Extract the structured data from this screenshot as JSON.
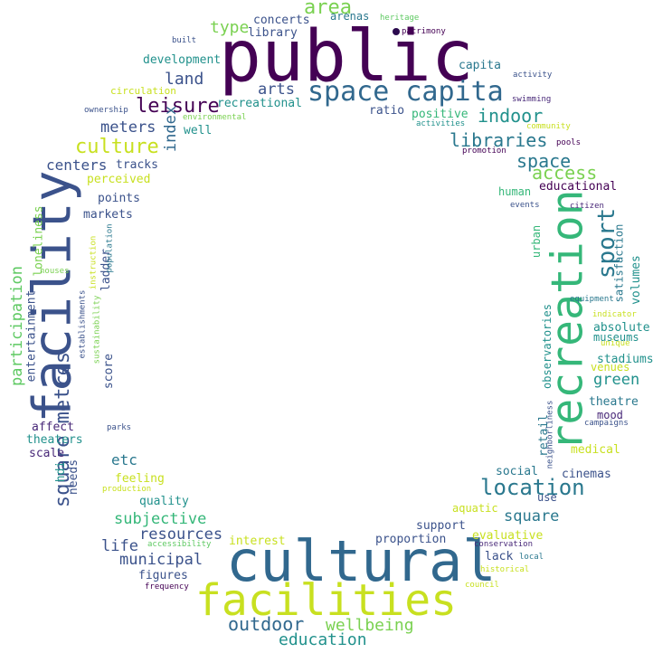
{
  "words": [
    {
      "text": "public",
      "color": "#440154"
    },
    {
      "text": "cultural",
      "color": "#31688e"
    },
    {
      "text": "facilities",
      "color": "#c8e020"
    },
    {
      "text": "facility",
      "color": "#3b528b"
    },
    {
      "text": "recreation",
      "color": "#35b779"
    },
    {
      "text": "space capita",
      "color": "#31688e"
    },
    {
      "text": "sport",
      "color": "#2a788e"
    },
    {
      "text": "location",
      "color": "#2a788e"
    },
    {
      "text": "square metres",
      "color": "#3b528b"
    },
    {
      "text": "area",
      "color": "#7ad151"
    },
    {
      "text": "leisure",
      "color": "#440154"
    },
    {
      "text": "culture",
      "color": "#c8e020"
    },
    {
      "text": "indoor",
      "color": "#21918c"
    },
    {
      "text": "libraries",
      "color": "#2a788e"
    },
    {
      "text": "space",
      "color": "#2a788e"
    },
    {
      "text": "access",
      "color": "#7ad151"
    },
    {
      "text": "outdoor",
      "color": "#31688e"
    },
    {
      "text": "wellbeing",
      "color": "#7ad151"
    },
    {
      "text": "education",
      "color": "#21918c"
    },
    {
      "text": "land",
      "color": "#3b528b"
    },
    {
      "text": "arts",
      "color": "#3b528b"
    },
    {
      "text": "type",
      "color": "#7ad151"
    },
    {
      "text": "meters",
      "color": "#3b528b"
    },
    {
      "text": "index",
      "color": "#31688e"
    },
    {
      "text": "green",
      "color": "#21918c"
    },
    {
      "text": "subjective",
      "color": "#35b779"
    },
    {
      "text": "municipal",
      "color": "#3b528b"
    },
    {
      "text": "resources",
      "color": "#3b528b"
    },
    {
      "text": "life",
      "color": "#3b528b"
    },
    {
      "text": "square",
      "color": "#2a788e"
    },
    {
      "text": "participation",
      "color": "#5ec962"
    },
    {
      "text": "centers",
      "color": "#3b528b"
    },
    {
      "text": "etc",
      "color": "#2a788e"
    },
    {
      "text": "concerts",
      "color": "#3b528b"
    },
    {
      "text": "library",
      "color": "#3b528b"
    },
    {
      "text": "arenas",
      "color": "#2a788e"
    },
    {
      "text": "heritage",
      "color": "#5ec962"
    },
    {
      "text": "patrimony",
      "color": "#440154"
    },
    {
      "text": "built",
      "color": "#3b528b"
    },
    {
      "text": "development",
      "color": "#21918c"
    },
    {
      "text": "capita",
      "color": "#2a788e"
    },
    {
      "text": "activity",
      "color": "#3b528b"
    },
    {
      "text": "circulation",
      "color": "#c8e020"
    },
    {
      "text": "recreational",
      "color": "#21918c"
    },
    {
      "text": "swimming",
      "color": "#482878"
    },
    {
      "text": "ownership",
      "color": "#3b528b"
    },
    {
      "text": "environmental",
      "color": "#7ad151"
    },
    {
      "text": "positive",
      "color": "#35b779"
    },
    {
      "text": "activities",
      "color": "#21918c"
    },
    {
      "text": "community",
      "color": "#c8e020"
    },
    {
      "text": "well",
      "color": "#21918c"
    },
    {
      "text": "ratio",
      "color": "#3b528b"
    },
    {
      "text": "pools",
      "color": "#440154"
    },
    {
      "text": "promotion",
      "color": "#440154"
    },
    {
      "text": "tracks",
      "color": "#3b528b"
    },
    {
      "text": "perceived",
      "color": "#c8e020"
    },
    {
      "text": "educational",
      "color": "#440154"
    },
    {
      "text": "human",
      "color": "#35b779"
    },
    {
      "text": "points",
      "color": "#3b528b"
    },
    {
      "text": "events",
      "color": "#3b528b"
    },
    {
      "text": "citizen",
      "color": "#482878"
    },
    {
      "text": "markets",
      "color": "#3b528b"
    },
    {
      "text": "loneliness",
      "color": "#7ad151"
    },
    {
      "text": "urban",
      "color": "#35b779"
    },
    {
      "text": "satisfaction",
      "color": "#2a788e"
    },
    {
      "text": "ladder",
      "color": "#3b528b"
    },
    {
      "text": "instruction",
      "color": "#c8e020"
    },
    {
      "text": "population",
      "color": "#2a788e"
    },
    {
      "text": "houses",
      "color": "#7ad151"
    },
    {
      "text": "volumes",
      "color": "#21918c"
    },
    {
      "text": "equipment",
      "color": "#2a788e"
    },
    {
      "text": "observatories",
      "color": "#21918c"
    },
    {
      "text": "indicator",
      "color": "#c8e020"
    },
    {
      "text": "absolute",
      "color": "#21918c"
    },
    {
      "text": "entertainment",
      "color": "#3b528b"
    },
    {
      "text": "establishments",
      "color": "#3b528b"
    },
    {
      "text": "sustainability",
      "color": "#7ad151"
    },
    {
      "text": "museums",
      "color": "#21918c"
    },
    {
      "text": "unique",
      "color": "#c8e020"
    },
    {
      "text": "stadiums",
      "color": "#21918c"
    },
    {
      "text": "venues",
      "color": "#c8e020"
    },
    {
      "text": "score",
      "color": "#3b528b"
    },
    {
      "text": "theatre",
      "color": "#2a788e"
    },
    {
      "text": "mood",
      "color": "#482878"
    },
    {
      "text": "campaigns",
      "color": "#3b528b"
    },
    {
      "text": "affect",
      "color": "#482878"
    },
    {
      "text": "parks",
      "color": "#3b528b"
    },
    {
      "text": "retail",
      "color": "#2a788e"
    },
    {
      "text": "neighborliness",
      "color": "#3b528b"
    },
    {
      "text": "theaters",
      "color": "#21918c"
    },
    {
      "text": "medical",
      "color": "#c8e020"
    },
    {
      "text": "hdi",
      "color": "#21918c"
    },
    {
      "text": "scale",
      "color": "#482878"
    },
    {
      "text": "needs",
      "color": "#3b528b"
    },
    {
      "text": "feeling",
      "color": "#c8e020"
    },
    {
      "text": "social",
      "color": "#2a788e"
    },
    {
      "text": "cinemas",
      "color": "#3b528b"
    },
    {
      "text": "production",
      "color": "#c8e020"
    },
    {
      "text": "use",
      "color": "#3b528b"
    },
    {
      "text": "quality",
      "color": "#21918c"
    },
    {
      "text": "aquatic",
      "color": "#c8e020"
    },
    {
      "text": "support",
      "color": "#3b528b"
    },
    {
      "text": "evaluative",
      "color": "#c8e020"
    },
    {
      "text": "interest",
      "color": "#c8e020"
    },
    {
      "text": "proportion",
      "color": "#3b528b"
    },
    {
      "text": "accessibility",
      "color": "#5ec962"
    },
    {
      "text": "conservation",
      "color": "#482878"
    },
    {
      "text": "lack",
      "color": "#3b528b"
    },
    {
      "text": "local",
      "color": "#2a788e"
    },
    {
      "text": "figures",
      "color": "#3b528b"
    },
    {
      "text": "historical",
      "color": "#c8e020"
    },
    {
      "text": "frequency",
      "color": "#440154"
    },
    {
      "text": "council",
      "color": "#c8e020"
    }
  ]
}
